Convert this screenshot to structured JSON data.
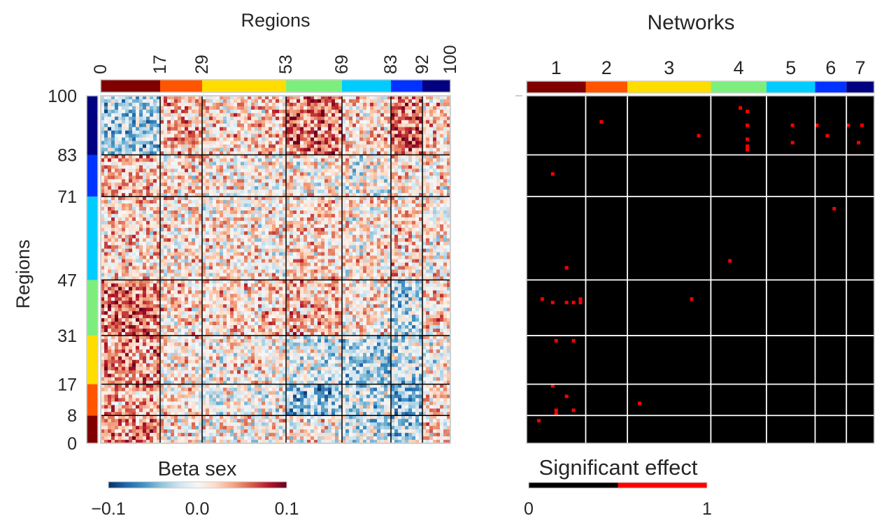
{
  "chart_data": [
    {
      "type": "heatmap",
      "title": "Regions",
      "ylabel": "Regions",
      "n_regions": 100,
      "x_ticks": [
        "0",
        "17",
        "29",
        "53",
        "69",
        "83",
        "92",
        "100"
      ],
      "y_ticks": [
        "100",
        "83",
        "71",
        "47",
        "31",
        "17",
        "8",
        "0"
      ],
      "x_boundaries": [
        0,
        17,
        29,
        53,
        69,
        83,
        92,
        100
      ],
      "y_boundaries": [
        0,
        8,
        17,
        31,
        47,
        71,
        83,
        100
      ],
      "network_colors": [
        "#800000",
        "#ff5500",
        "#ffdd00",
        "#7dee7d",
        "#00ccff",
        "#0033ff",
        "#000080"
      ],
      "colorbar": {
        "label": "Beta sex",
        "ticks": [
          "−0.1",
          "0.0",
          "0.1"
        ],
        "vmin": -0.1,
        "vmax": 0.1,
        "colors": [
          "#053061",
          "#2166ac",
          "#4393c3",
          "#92c5de",
          "#d1e5f0",
          "#f7f7f7",
          "#fddbc7",
          "#f4a582",
          "#d6604d",
          "#b2182b",
          "#67001f"
        ]
      },
      "block_means_note": "rows: bottom-to-top network (1..7); cols: left-to-right network (1..7); values are approximate mean beta per block",
      "block_means": [
        [
          0.045,
          0.01,
          0.005,
          0.005,
          -0.02,
          -0.025,
          0.02
        ],
        [
          0.035,
          0.01,
          0.0,
          -0.04,
          -0.02,
          -0.04,
          0.015
        ],
        [
          0.04,
          0.01,
          0.01,
          -0.01,
          -0.03,
          -0.02,
          0.0
        ],
        [
          0.05,
          0.02,
          0.02,
          0.03,
          0.01,
          -0.03,
          0.02
        ],
        [
          0.02,
          0.01,
          0.01,
          0.02,
          0.01,
          0.02,
          0.01
        ],
        [
          0.03,
          0.015,
          0.01,
          0.01,
          0.0,
          0.01,
          0.01
        ],
        [
          -0.035,
          0.03,
          0.02,
          0.05,
          0.02,
          0.055,
          0.02
        ]
      ]
    },
    {
      "type": "heatmap",
      "title": "Networks",
      "n_regions": 100,
      "network_labels": [
        "1",
        "2",
        "3",
        "4",
        "5",
        "6",
        "7"
      ],
      "boundaries": [
        0,
        17,
        29,
        53,
        69,
        83,
        92,
        100
      ],
      "network_colors": [
        "#800000",
        "#ff5500",
        "#ffdd00",
        "#7dee7d",
        "#00ccff",
        "#0033ff",
        "#000080"
      ],
      "background": "#000000",
      "significant_color": "#ff0000",
      "colorbar": {
        "label": "Significant effect",
        "ticks": [
          "0",
          "1"
        ],
        "colors": [
          "#000000",
          "#ff0000"
        ]
      },
      "significant_cells_note": "[row_from_top, col] in region units (0-99)",
      "significant_cells": [
        [
          3,
          61
        ],
        [
          4,
          63
        ],
        [
          7,
          21
        ],
        [
          8,
          63
        ],
        [
          8,
          92
        ],
        [
          8,
          96
        ],
        [
          8,
          76
        ],
        [
          8,
          83
        ],
        [
          11,
          49
        ],
        [
          11,
          86
        ],
        [
          12,
          63
        ],
        [
          13,
          76
        ],
        [
          13,
          95
        ],
        [
          14,
          63
        ],
        [
          15,
          63
        ],
        [
          22,
          7
        ],
        [
          32,
          88
        ],
        [
          47,
          58
        ],
        [
          49,
          11
        ],
        [
          58,
          4
        ],
        [
          59,
          7
        ],
        [
          59,
          11
        ],
        [
          59,
          13
        ],
        [
          58,
          15
        ],
        [
          59,
          15
        ],
        [
          58,
          47
        ],
        [
          70,
          8
        ],
        [
          70,
          13
        ],
        [
          83,
          7
        ],
        [
          86,
          11
        ],
        [
          88,
          32
        ],
        [
          90,
          13
        ],
        [
          90,
          8
        ],
        [
          91,
          8
        ],
        [
          93,
          3
        ]
      ]
    }
  ]
}
